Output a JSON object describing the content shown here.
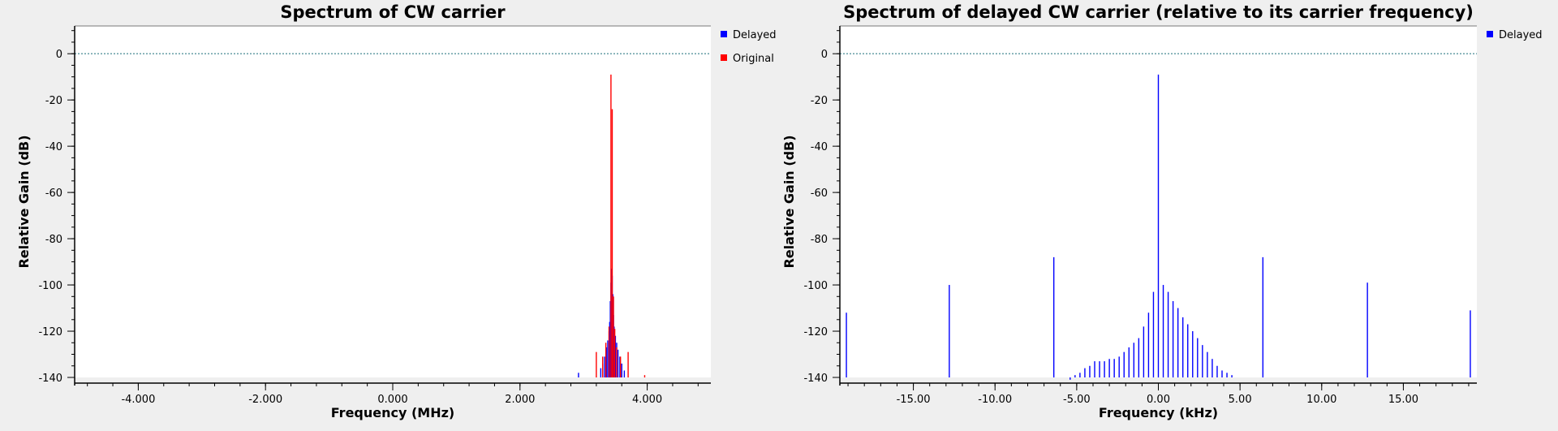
{
  "chart_data": [
    {
      "type": "line",
      "title": "Spectrum of CW carrier",
      "xlabel": "Frequency (MHz)",
      "ylabel": "Relative Gain (dB)",
      "xlim": [
        -5.0,
        5.0
      ],
      "ylim": [
        -140,
        12
      ],
      "x_ticks": [
        -4.0,
        -2.0,
        0.0,
        2.0,
        4.0
      ],
      "x_tick_labels": [
        "-4.000",
        "-2.000",
        "0.000",
        "2.000",
        "4.000"
      ],
      "y_ticks": [
        0,
        -20,
        -40,
        -60,
        -80,
        -100,
        -120,
        -140
      ],
      "y_tick_labels": [
        "0",
        "-20",
        "-40",
        "-60",
        "-80",
        "-100",
        "-120",
        "-140"
      ],
      "reference_line_y": 0,
      "legend_position": "right",
      "series": [
        {
          "name": "Delayed",
          "color": "#0000ff",
          "spikes": [
            {
              "x": 2.92,
              "y": -138
            },
            {
              "x": 3.27,
              "y": -136
            },
            {
              "x": 3.3,
              "y": -134
            },
            {
              "x": 3.33,
              "y": -131
            },
            {
              "x": 3.36,
              "y": -127
            },
            {
              "x": 3.38,
              "y": -124
            },
            {
              "x": 3.4,
              "y": -120
            },
            {
              "x": 3.41,
              "y": -116
            },
            {
              "x": 3.42,
              "y": -107
            },
            {
              "x": 3.43,
              "y": -99
            },
            {
              "x": 3.44,
              "y": -93
            },
            {
              "x": 3.45,
              "y": -96
            },
            {
              "x": 3.46,
              "y": -104
            },
            {
              "x": 3.47,
              "y": -113
            },
            {
              "x": 3.48,
              "y": -118
            },
            {
              "x": 3.5,
              "y": -122
            },
            {
              "x": 3.52,
              "y": -125
            },
            {
              "x": 3.54,
              "y": -128
            },
            {
              "x": 3.57,
              "y": -131
            },
            {
              "x": 3.6,
              "y": -134
            },
            {
              "x": 3.64,
              "y": -137
            }
          ]
        },
        {
          "name": "Original",
          "color": "#ff0000",
          "spikes": [
            {
              "x": 3.2,
              "y": -129
            },
            {
              "x": 3.3,
              "y": -131
            },
            {
              "x": 3.35,
              "y": -125
            },
            {
              "x": 3.4,
              "y": -118
            },
            {
              "x": 3.43,
              "y": -9
            },
            {
              "x": 3.45,
              "y": -24
            },
            {
              "x": 3.47,
              "y": -105
            },
            {
              "x": 3.49,
              "y": -119
            },
            {
              "x": 3.52,
              "y": -127
            },
            {
              "x": 3.58,
              "y": -131
            },
            {
              "x": 3.7,
              "y": -129
            },
            {
              "x": 3.96,
              "y": -139
            }
          ]
        }
      ]
    },
    {
      "type": "line",
      "title": "Spectrum of delayed CW carrier (relative to its carrier frequency)",
      "xlabel": "Frequency (kHz)",
      "ylabel": "Relative Gain (dB)",
      "xlim": [
        -19.5,
        19.5
      ],
      "ylim": [
        -140,
        12
      ],
      "x_ticks": [
        -15.0,
        -10.0,
        -5.0,
        0.0,
        5.0,
        10.0,
        15.0
      ],
      "x_tick_labels": [
        "-15.00",
        "-10.00",
        "-5.00",
        "0.00",
        "5.00",
        "10.00",
        "15.00"
      ],
      "y_ticks": [
        0,
        -20,
        -40,
        -60,
        -80,
        -100,
        -120,
        -140
      ],
      "y_tick_labels": [
        "0",
        "-20",
        "-40",
        "-60",
        "-80",
        "-100",
        "-120",
        "-140"
      ],
      "reference_line_y": 0,
      "legend_position": "right",
      "series": [
        {
          "name": "Delayed",
          "color": "#0000ff",
          "spikes": [
            {
              "x": -19.1,
              "y": -112
            },
            {
              "x": -12.8,
              "y": -100
            },
            {
              "x": -6.4,
              "y": -88
            },
            {
              "x": 0.0,
              "y": -9
            },
            {
              "x": 6.4,
              "y": -88
            },
            {
              "x": 12.8,
              "y": -99
            },
            {
              "x": 19.1,
              "y": -111
            },
            {
              "x": -5.4,
              "y": -141
            },
            {
              "x": -5.1,
              "y": -139
            },
            {
              "x": -4.8,
              "y": -138
            },
            {
              "x": -4.5,
              "y": -136
            },
            {
              "x": -4.2,
              "y": -135
            },
            {
              "x": -3.9,
              "y": -133
            },
            {
              "x": -3.6,
              "y": -133
            },
            {
              "x": -3.3,
              "y": -133
            },
            {
              "x": -3.0,
              "y": -132
            },
            {
              "x": -2.7,
              "y": -132
            },
            {
              "x": -2.4,
              "y": -131
            },
            {
              "x": -2.1,
              "y": -129
            },
            {
              "x": -1.8,
              "y": -127
            },
            {
              "x": -1.5,
              "y": -125
            },
            {
              "x": -1.2,
              "y": -123
            },
            {
              "x": -0.9,
              "y": -118
            },
            {
              "x": -0.6,
              "y": -112
            },
            {
              "x": -0.3,
              "y": -103
            },
            {
              "x": 0.3,
              "y": -100
            },
            {
              "x": 0.6,
              "y": -103
            },
            {
              "x": 0.9,
              "y": -107
            },
            {
              "x": 1.2,
              "y": -110
            },
            {
              "x": 1.5,
              "y": -114
            },
            {
              "x": 1.8,
              "y": -117
            },
            {
              "x": 2.1,
              "y": -120
            },
            {
              "x": 2.4,
              "y": -123
            },
            {
              "x": 2.7,
              "y": -126
            },
            {
              "x": 3.0,
              "y": -129
            },
            {
              "x": 3.3,
              "y": -132
            },
            {
              "x": 3.6,
              "y": -135
            },
            {
              "x": 3.9,
              "y": -137
            },
            {
              "x": 4.2,
              "y": -138
            },
            {
              "x": 4.5,
              "y": -139
            }
          ]
        }
      ]
    }
  ]
}
